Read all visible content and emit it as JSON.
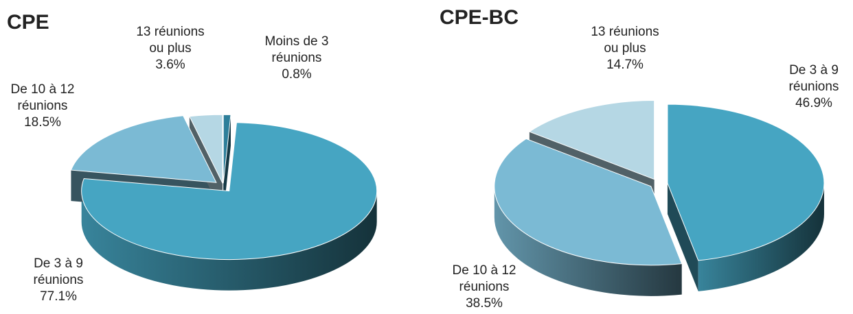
{
  "chart_data": [
    {
      "type": "pie3d",
      "title": "CPE",
      "categories": [
        [
          "Moins de 3",
          "réunions"
        ],
        [
          "De 3 à 9",
          "réunions"
        ],
        [
          "De 10 à 12",
          "réunions"
        ],
        [
          "13 réunions",
          "ou plus"
        ]
      ],
      "values": [
        0.8,
        77.1,
        18.5,
        3.6
      ],
      "value_labels": [
        "0.8%",
        "77.1%",
        "18.5%",
        "3.6%"
      ],
      "colors": [
        "#2e7f9a",
        "#46a5c2",
        "#7bbad4",
        "#b5d7e4"
      ]
    },
    {
      "type": "pie3d",
      "title": "CPE-BC",
      "categories": [
        [
          "De 3 à 9",
          "réunions"
        ],
        [
          "De 10 à 12",
          "réunions"
        ],
        [
          "13 réunions",
          "ou plus"
        ]
      ],
      "values": [
        46.9,
        38.5,
        14.7
      ],
      "value_labels": [
        "46.9%",
        "38.5%",
        "14.7%"
      ],
      "colors": [
        "#46a5c2",
        "#7bbad4",
        "#b5d7e4"
      ]
    }
  ]
}
